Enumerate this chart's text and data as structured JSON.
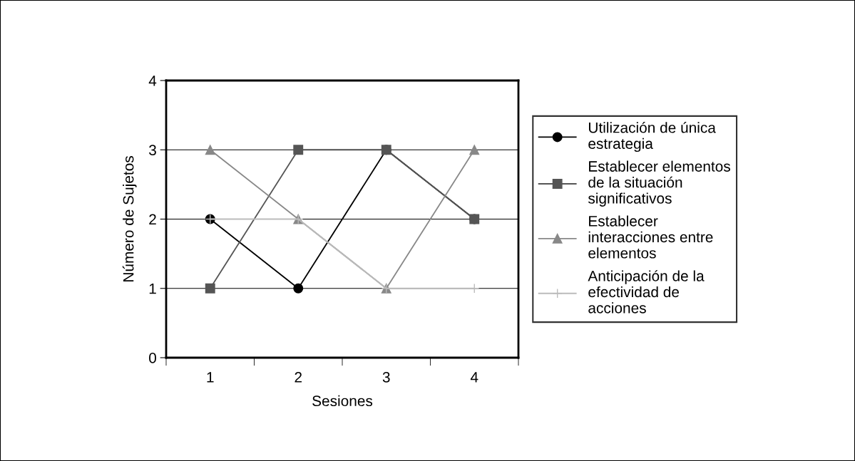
{
  "chart_data": {
    "type": "line",
    "xlabel": "Sesiones",
    "ylabel": "Número de Sujetos",
    "categories": [
      "1",
      "2",
      "3",
      "4"
    ],
    "series": [
      {
        "name": "Utilización de única\nestrategia",
        "color": "#000000",
        "marker": "circle",
        "values": [
          2,
          1,
          3,
          2
        ]
      },
      {
        "name": "Establecer elementos\nde la situación\nsignificativos",
        "color": "#555555",
        "marker": "square",
        "values": [
          1,
          3,
          3,
          2
        ]
      },
      {
        "name": "Establecer\ninteracciones entre\nelementos",
        "color": "#888888",
        "marker": "triangle",
        "values": [
          3,
          2,
          1,
          3
        ]
      },
      {
        "name": "Anticipación de la\nefectividad de\nacciones",
        "color": "#bbbbbb",
        "marker": "cross",
        "values": [
          2,
          2,
          1,
          1
        ]
      }
    ],
    "ylim": [
      0,
      4
    ],
    "yticks": [
      0,
      1,
      2,
      3,
      4
    ],
    "grid": "y",
    "legend": "right",
    "line_style": "solid"
  }
}
